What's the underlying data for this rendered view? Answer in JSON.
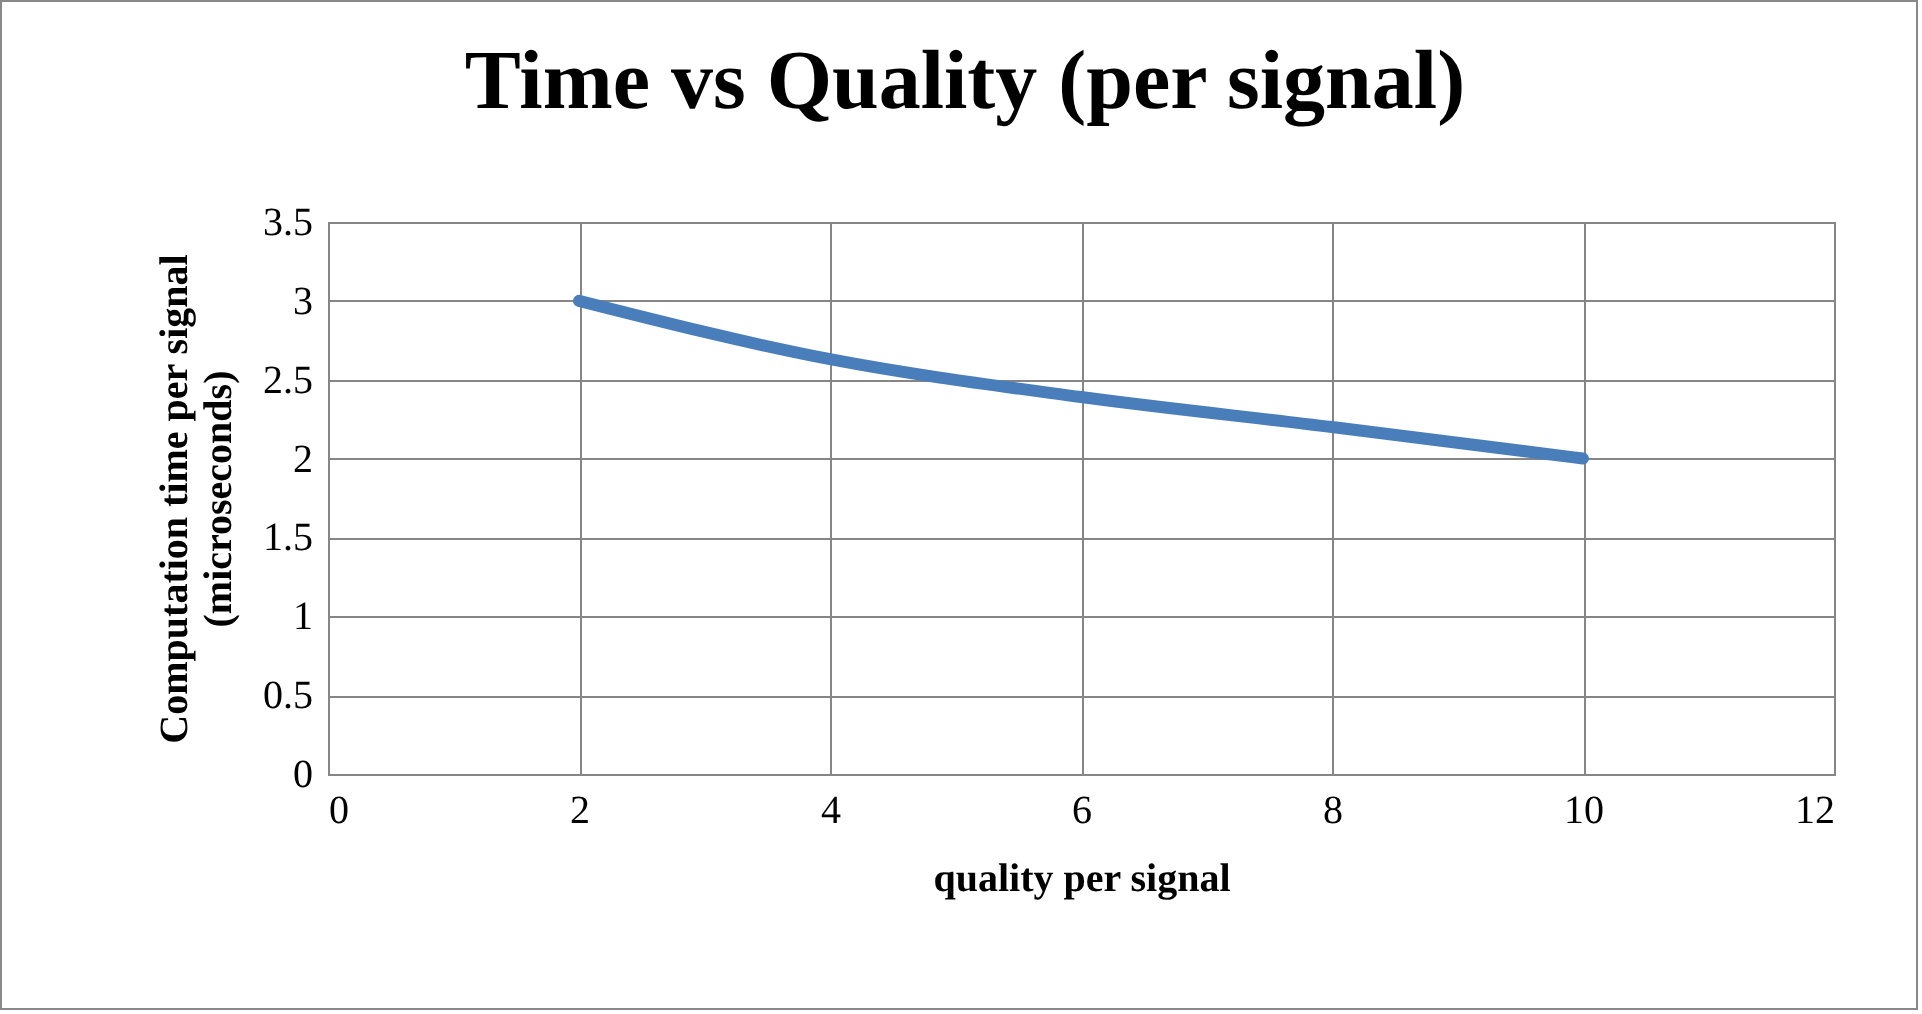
{
  "chart_data": {
    "type": "line",
    "title": "Time vs Quality (per signal)",
    "xlabel": "quality per signal",
    "ylabel": "Computation time per signal\n(microseconds)",
    "x": [
      2,
      4,
      6,
      8,
      10
    ],
    "series": [
      {
        "color": "#4a7ebb",
        "values": [
          3,
          2.63,
          2.39,
          2.2,
          2
        ]
      }
    ],
    "xlim": [
      0,
      12
    ],
    "xticks": [
      0,
      2,
      4,
      6,
      8,
      10,
      12
    ],
    "ylim": [
      0,
      3.5
    ],
    "yticks": [
      0,
      0.5,
      1,
      1.5,
      2,
      2.5,
      3,
      3.5
    ],
    "grid": true,
    "marker": "none",
    "line_style": "solid"
  }
}
